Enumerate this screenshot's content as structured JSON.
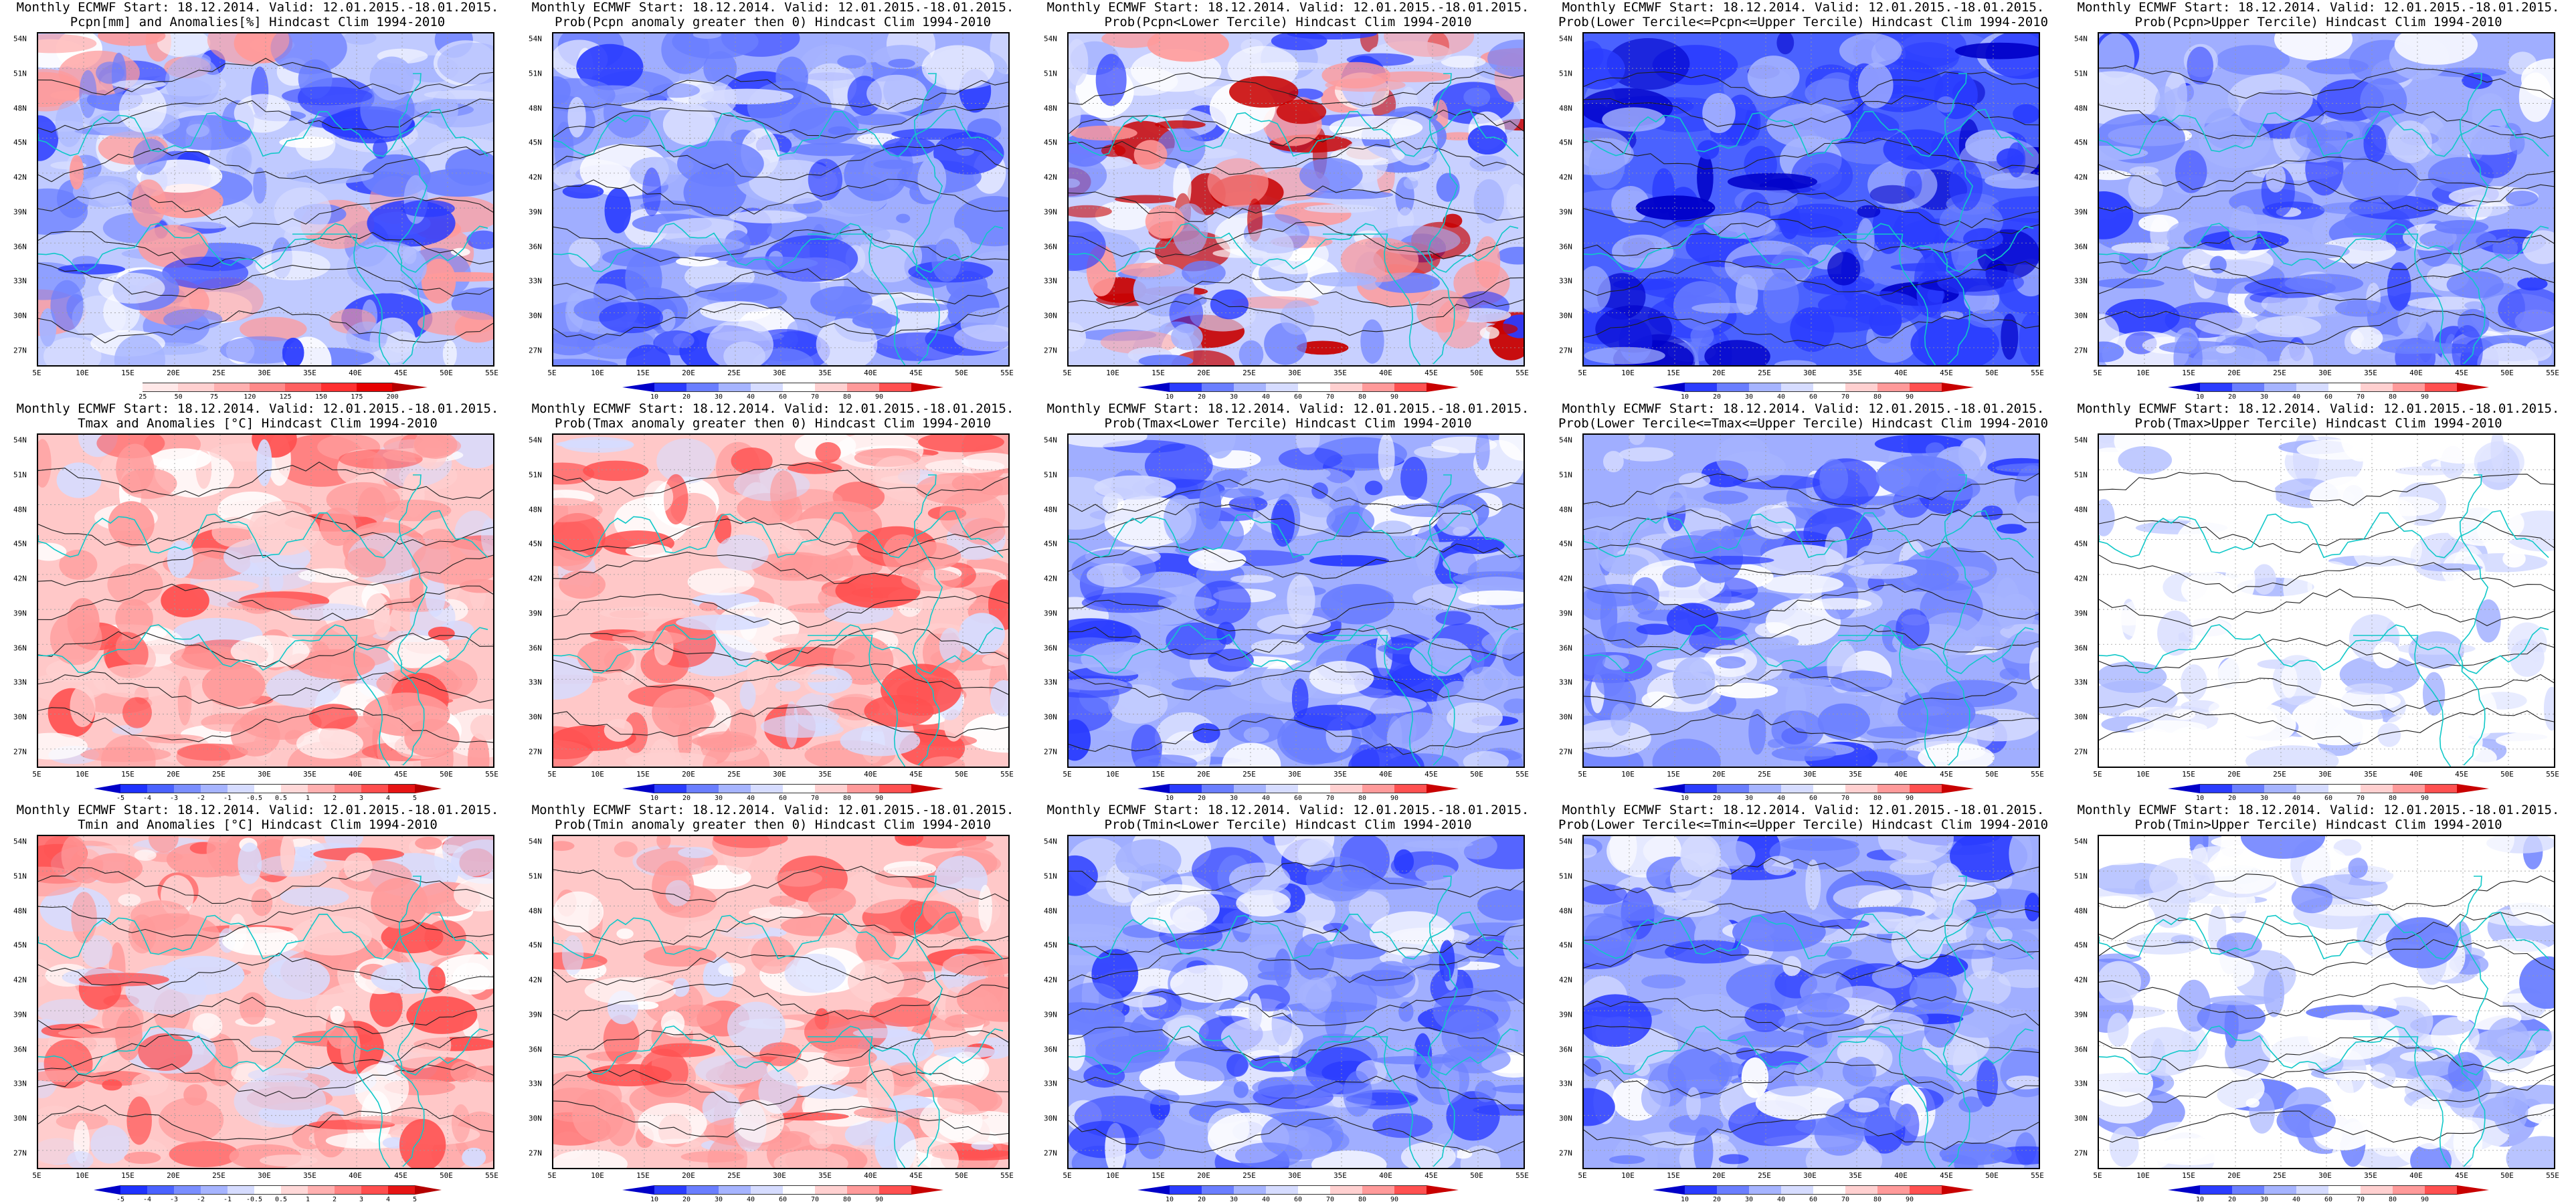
{
  "panels": [
    {
      "id": "p0",
      "line1": "Monthly ECMWF Start: 18.12.2014. Valid: 12.01.2015.-18.01.2015.",
      "line2": "Pcpn[mm] and Anomalies[%] Hindcast Clim 1994-2010",
      "scale": "pcpn",
      "dominant": "mixed-precip",
      "cbar": "anom_pcpn"
    },
    {
      "id": "p1",
      "line1": "Monthly ECMWF Start: 18.12.2014. Valid: 12.01.2015.-18.01.2015.",
      "line2": "Prob(Pcpn anomaly greater then 0) Hindcast Clim 1994-2010",
      "scale": "prob",
      "dominant": "blue",
      "cbar": "prob"
    },
    {
      "id": "p2",
      "line1": "Monthly ECMWF Start: 18.12.2014. Valid: 12.01.2015.-18.01.2015.",
      "line2": "Prob(Pcpn<Lower Tercile) Hindcast Clim 1994-2010",
      "scale": "prob",
      "dominant": "bluered",
      "cbar": "prob"
    },
    {
      "id": "p3",
      "line1": "Monthly ECMWF Start: 18.12.2014. Valid: 12.01.2015.-18.01.2015.",
      "line2": "Prob(Lower Tercile<=Pcpn<=Upper Tercile) Hindcast Clim 1994-2010",
      "scale": "prob",
      "dominant": "deepblue",
      "cbar": "prob"
    },
    {
      "id": "p4",
      "line1": "Monthly ECMWF Start: 18.12.2014. Valid: 12.01.2015.-18.01.2015.",
      "line2": "Prob(Pcpn>Upper Tercile) Hindcast Clim 1994-2010",
      "scale": "prob",
      "dominant": "blue",
      "cbar": "prob"
    },
    {
      "id": "p5",
      "line1": "Monthly ECMWF Start: 18.12.2014. Valid: 12.01.2015.-18.01.2015.",
      "line2": "Tmax and Anomalies [°C] Hindcast Clim 1994-2010",
      "scale": "anom",
      "dominant": "red",
      "cbar": "anom_t"
    },
    {
      "id": "p6",
      "line1": "Monthly ECMWF Start: 18.12.2014. Valid: 12.01.2015.-18.01.2015.",
      "line2": "Prob(Tmax anomaly greater then 0) Hindcast Clim 1994-2010",
      "scale": "prob",
      "dominant": "red",
      "cbar": "prob"
    },
    {
      "id": "p7",
      "line1": "Monthly ECMWF Start: 18.12.2014. Valid: 12.01.2015.-18.01.2015.",
      "line2": "Prob(Tmax<Lower Tercile) Hindcast Clim 1994-2010",
      "scale": "prob",
      "dominant": "blue",
      "cbar": "prob"
    },
    {
      "id": "p8",
      "line1": "Monthly ECMWF Start: 18.12.2014. Valid: 12.01.2015.-18.01.2015.",
      "line2": "Prob(Lower Tercile<=Tmax<=Upper Tercile) Hindcast Clim 1994-2010",
      "scale": "prob",
      "dominant": "blue",
      "cbar": "prob"
    },
    {
      "id": "p9",
      "line1": "Monthly ECMWF Start: 18.12.2014. Valid: 12.01.2015.-18.01.2015.",
      "line2": "Prob(Tmax>Upper Tercile) Hindcast Clim 1994-2010",
      "scale": "prob",
      "dominant": "white",
      "cbar": "prob"
    },
    {
      "id": "p10",
      "line1": "Monthly ECMWF Start: 18.12.2014. Valid: 12.01.2015.-18.01.2015.",
      "line2": "Tmin and Anomalies [°C] Hindcast Clim 1994-2010",
      "scale": "anom",
      "dominant": "red",
      "cbar": "anom_t"
    },
    {
      "id": "p11",
      "line1": "Monthly ECMWF Start: 18.12.2014. Valid: 12.01.2015.-18.01.2015.",
      "line2": "Prob(Tmin anomaly greater then 0) Hindcast Clim 1994-2010",
      "scale": "prob",
      "dominant": "red",
      "cbar": "prob"
    },
    {
      "id": "p12",
      "line1": "Monthly ECMWF Start: 18.12.2014. Valid: 12.01.2015.-18.01.2015.",
      "line2": "Prob(Tmin<Lower Tercile) Hindcast Clim 1994-2010",
      "scale": "prob",
      "dominant": "blue",
      "cbar": "prob"
    },
    {
      "id": "p13",
      "line1": "Monthly ECMWF Start: 18.12.2014. Valid: 12.01.2015.-18.01.2015.",
      "line2": "Prob(Lower Tercile<=Tmin<=Upper Tercile) Hindcast Clim 1994-2010",
      "scale": "prob",
      "dominant": "blue",
      "cbar": "prob"
    },
    {
      "id": "p14",
      "line1": "Monthly ECMWF Start: 18.12.2014. Valid: 12.01.2015.-18.01.2015.",
      "line2": "Prob(Tmin>Upper Tercile) Hindcast Clim 1994-2010",
      "scale": "prob",
      "dominant": "blue-se",
      "cbar": "prob"
    }
  ],
  "lat_labels": [
    "54N",
    "51N",
    "48N",
    "45N",
    "42N",
    "39N",
    "36N",
    "33N",
    "30N",
    "27N"
  ],
  "lon_labels": [
    "5E",
    "10E",
    "15E",
    "20E",
    "25E",
    "30E",
    "35E",
    "40E",
    "45E",
    "50E",
    "55E"
  ],
  "colorbars": {
    "prob": {
      "ticks": [
        "10",
        "20",
        "30",
        "40",
        "60",
        "70",
        "80",
        "90"
      ],
      "colors": [
        "#0000c8",
        "#2a3cff",
        "#6a7eff",
        "#a6b4ff",
        "#d6dcff",
        "#ffffff",
        "#ffd0d0",
        "#ff9a9a",
        "#ff5050",
        "#c80000"
      ]
    },
    "anom_t": {
      "ticks": [
        "-5",
        "-4",
        "-3",
        "-2",
        "-1",
        "-0.5",
        "0.5",
        "1",
        "2",
        "3",
        "4",
        "5"
      ],
      "colors": [
        "#0000c8",
        "#1e32ff",
        "#4a62ff",
        "#7a8eff",
        "#a6b4ff",
        "#d6dcff",
        "#ffffff",
        "#ffd8d8",
        "#ffb0b0",
        "#ff8282",
        "#ff4e4e",
        "#e61414",
        "#b40000"
      ]
    },
    "anom_pcpn": {
      "ticks": [
        "25",
        "50",
        "75",
        "120",
        "125",
        "150",
        "175",
        "200"
      ],
      "colors": [
        "#ffffff",
        "#ffe8e8",
        "#ffd0d0",
        "#ffb0b0",
        "#ff8a8a",
        "#ff6060",
        "#ff3030",
        "#e60000",
        "#b40000"
      ]
    }
  },
  "palette": {
    "coast": "#10c8c8",
    "contour": "#202020",
    "grid": "#9a9a9a"
  }
}
